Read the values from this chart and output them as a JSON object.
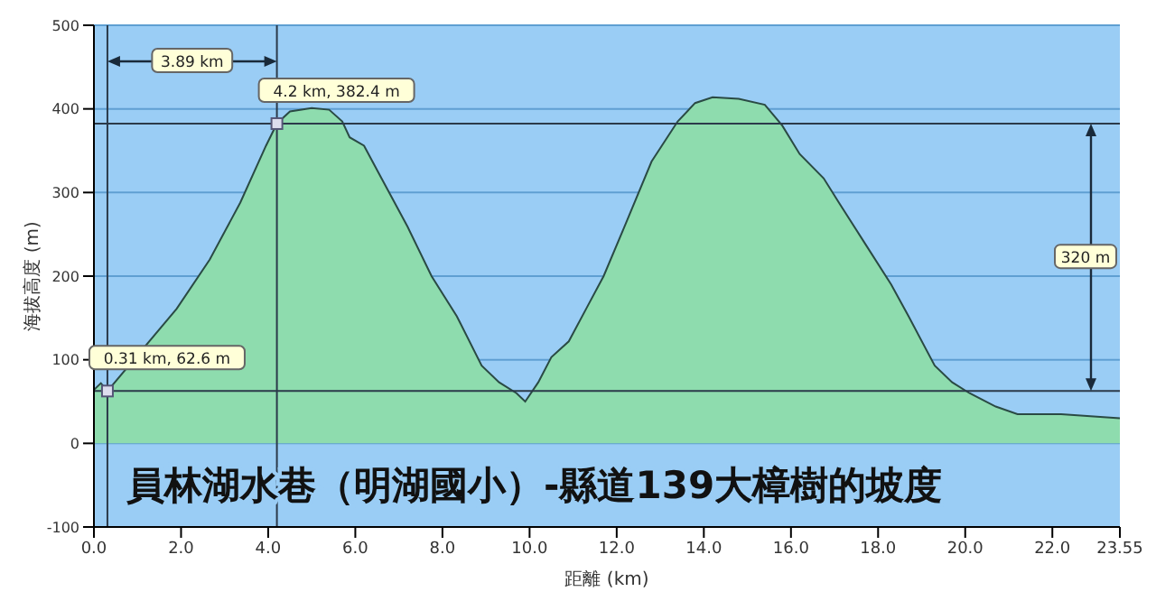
{
  "chart_data": {
    "type": "area",
    "title": "員林湖水巷（明湖國小）-縣道139大樟樹的坡度",
    "xlabel": "距離 (km)",
    "ylabel": "海拔高度 (m)",
    "x": [
      0,
      0.16,
      0.31,
      1.9,
      2.66,
      3.36,
      3.95,
      4.2,
      4.5,
      5.0,
      5.4,
      5.7,
      5.87,
      6.2,
      6.6,
      7.2,
      7.75,
      8.33,
      8.9,
      9.3,
      9.7,
      9.9,
      10.2,
      10.5,
      10.9,
      11.3,
      11.7,
      12.25,
      12.8,
      13.4,
      13.8,
      14.2,
      14.8,
      15.4,
      15.8,
      16.2,
      16.75,
      17.1,
      17.7,
      18.3,
      18.7,
      19.3,
      19.7,
      20.1,
      20.7,
      21.2,
      22.2,
      23.55
    ],
    "series": [
      {
        "color": "#8edcae",
        "values": [
          64,
          72,
          62.6,
          161,
          220,
          288,
          356,
          382.4,
          397,
          401,
          399,
          385,
          366,
          356,
          317,
          259,
          200,
          152,
          93,
          73,
          60,
          50,
          73,
          103,
          122,
          161,
          200,
          268,
          337,
          385,
          407,
          414,
          412,
          405,
          380,
          346,
          317,
          288,
          239,
          190,
          152,
          93,
          73,
          60,
          44,
          35,
          35,
          30
        ]
      }
    ],
    "xlim": [
      0,
      23.55
    ],
    "xticks": [
      {
        "value": 0,
        "label": "0.0"
      },
      {
        "value": 2,
        "label": "2.0"
      },
      {
        "value": 4,
        "label": "4.0"
      },
      {
        "value": 6,
        "label": "6.0"
      },
      {
        "value": 8,
        "label": "8.0"
      },
      {
        "value": 10,
        "label": "10.0"
      },
      {
        "value": 12,
        "label": "12.0"
      },
      {
        "value": 14,
        "label": "14.0"
      },
      {
        "value": 16,
        "label": "16.0"
      },
      {
        "value": 18,
        "label": "18.0"
      },
      {
        "value": 20,
        "label": "20.0"
      },
      {
        "value": 22,
        "label": "22.0"
      },
      23.55
    ],
    "ylim": [
      -100,
      500
    ],
    "yticks": [
      -100,
      0,
      100,
      200,
      300,
      400,
      500
    ],
    "grid": "y",
    "ref_lines": [
      {
        "axis": "x",
        "value": 0.31,
        "color": "#2b3a4a"
      },
      {
        "axis": "x",
        "value": 4.2,
        "color": "#2b3a4a"
      },
      {
        "axis": "y",
        "value": 382.4,
        "color": "#2b3a4a"
      },
      {
        "axis": "y",
        "value": 62.6,
        "color": "#2b3a4a"
      }
    ],
    "annotations": [
      "3.89 km",
      {
        "text": "4.2 km, 382.4 m",
        "x": 4.2,
        "y": 382.4
      },
      {
        "text": "0.31 km, 62.6 m",
        "x": 0.31,
        "y": 62.6
      },
      "320 m"
    ]
  }
}
